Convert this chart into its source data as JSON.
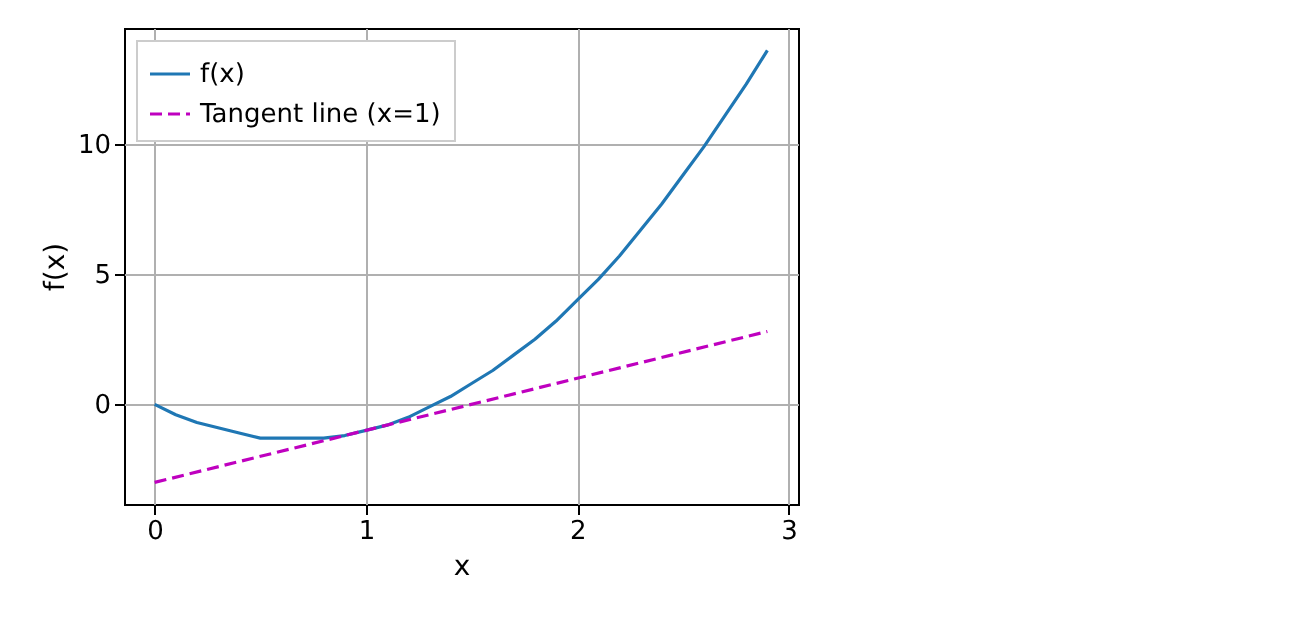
{
  "chart_data": {
    "type": "line",
    "xlabel": "x",
    "ylabel": "f(x)",
    "xlim": [
      -0.145,
      3.045
    ],
    "ylim": [
      -3.83,
      14.46
    ],
    "xticks": [
      0,
      1,
      2,
      3
    ],
    "yticks": [
      0,
      5,
      10
    ],
    "grid": true,
    "legend": "top left",
    "series": [
      {
        "name": "f(x)",
        "color": "#1f77b4",
        "line_style": "solid",
        "x": [
          0,
          0.1,
          0.2,
          0.3,
          0.4,
          0.5,
          0.6,
          0.7,
          0.8,
          0.9,
          1.0,
          1.1,
          1.2,
          1.3,
          1.4,
          1.5,
          1.6,
          1.7,
          1.8,
          1.9,
          2.0,
          2.1,
          2.2,
          2.3,
          2.4,
          2.5,
          2.6,
          2.7,
          2.8,
          2.9
        ],
        "values": [
          0,
          -0.4,
          -0.7,
          -0.9,
          -1.1,
          -1.3,
          -1.3,
          -1.3,
          -1.3,
          -1.2,
          -1.0,
          -0.8,
          -0.5,
          -0.1,
          0.3,
          0.8,
          1.3,
          1.9,
          2.5,
          3.2,
          4.0,
          4.8,
          5.7,
          6.7,
          7.7,
          8.8,
          9.9,
          11.1,
          12.3,
          13.6
        ]
      },
      {
        "name": "Tangent line (x=1)",
        "color": "#bf00bf",
        "line_style": "dashed",
        "x": [
          0,
          2.9
        ],
        "values": [
          -3.0,
          2.8
        ]
      }
    ]
  }
}
